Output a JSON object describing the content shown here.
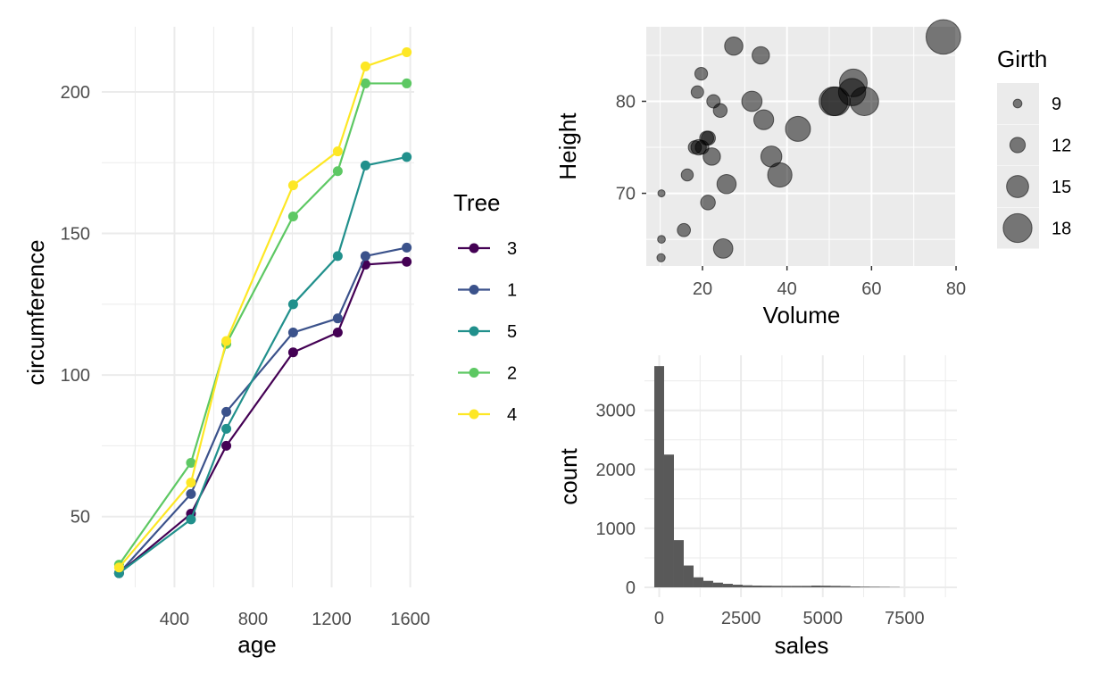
{
  "colors": {
    "tree3": "#440154",
    "tree1": "#3b528b",
    "tree5": "#21908c",
    "tree2": "#5dc863",
    "tree4": "#fde725",
    "grid_major": "#ebebeb",
    "panel_grey": "#ebebeb",
    "axis_text": "#4d4d4d",
    "bubble_fill": "#000000",
    "hist_fill": "#595959"
  },
  "chart_data": [
    {
      "type": "line",
      "title": "",
      "xlabel": "age",
      "ylabel": "circumference",
      "xlim": [
        30,
        1620
      ],
      "ylim": [
        25,
        223
      ],
      "xticks": [
        400,
        800,
        1200,
        1600
      ],
      "xtick_labels": [
        "400",
        "800",
        "1200",
        "1600"
      ],
      "yticks": [
        50,
        100,
        150,
        200
      ],
      "ytick_labels": [
        "50",
        "100",
        "150",
        "200"
      ],
      "legend_title": "Tree",
      "legend_position": "right",
      "x": [
        118,
        484,
        664,
        1004,
        1231,
        1372,
        1582
      ],
      "series": [
        {
          "name": "3",
          "color_key": "tree3",
          "values": [
            30,
            51,
            75,
            108,
            115,
            139,
            140
          ]
        },
        {
          "name": "1",
          "color_key": "tree1",
          "values": [
            30,
            58,
            87,
            115,
            120,
            142,
            145
          ]
        },
        {
          "name": "5",
          "color_key": "tree5",
          "values": [
            30,
            49,
            81,
            125,
            142,
            174,
            177
          ]
        },
        {
          "name": "2",
          "color_key": "tree2",
          "values": [
            33,
            69,
            111,
            156,
            172,
            203,
            203
          ]
        },
        {
          "name": "4",
          "color_key": "tree4",
          "values": [
            32,
            62,
            112,
            167,
            179,
            209,
            214
          ]
        }
      ]
    },
    {
      "type": "scatter",
      "title": "",
      "xlabel": "Volume",
      "ylabel": "Height",
      "xlim": [
        6.7,
        80.2
      ],
      "ylim": [
        62.1,
        88.1
      ],
      "xticks": [
        20,
        40,
        60,
        80
      ],
      "xtick_labels": [
        "20",
        "40",
        "60",
        "80"
      ],
      "yticks": [
        70,
        80
      ],
      "ytick_labels": [
        "70",
        "80"
      ],
      "size_legend_title": "Girth",
      "size_legend_values": [
        9,
        12,
        15,
        18
      ],
      "size_legend_labels": [
        "9",
        "12",
        "15",
        "18"
      ],
      "points": [
        {
          "girth": 8.3,
          "height": 70,
          "volume": 10.3
        },
        {
          "girth": 8.6,
          "height": 65,
          "volume": 10.3
        },
        {
          "girth": 8.8,
          "height": 63,
          "volume": 10.2
        },
        {
          "girth": 10.5,
          "height": 72,
          "volume": 16.4
        },
        {
          "girth": 10.7,
          "height": 81,
          "volume": 18.8
        },
        {
          "girth": 10.8,
          "height": 83,
          "volume": 19.7
        },
        {
          "girth": 11.0,
          "height": 66,
          "volume": 15.6
        },
        {
          "girth": 11.0,
          "height": 75,
          "volume": 18.2
        },
        {
          "girth": 11.1,
          "height": 80,
          "volume": 22.6
        },
        {
          "girth": 11.2,
          "height": 75,
          "volume": 19.9
        },
        {
          "girth": 11.3,
          "height": 79,
          "volume": 24.2
        },
        {
          "girth": 11.4,
          "height": 76,
          "volume": 21.0
        },
        {
          "girth": 11.4,
          "height": 76,
          "volume": 21.4
        },
        {
          "girth": 11.7,
          "height": 69,
          "volume": 21.3
        },
        {
          "girth": 12.0,
          "height": 75,
          "volume": 19.1
        },
        {
          "girth": 12.9,
          "height": 74,
          "volume": 22.2
        },
        {
          "girth": 12.9,
          "height": 85,
          "volume": 33.8
        },
        {
          "girth": 13.3,
          "height": 86,
          "volume": 27.4
        },
        {
          "girth": 13.7,
          "height": 71,
          "volume": 25.7
        },
        {
          "girth": 13.8,
          "height": 64,
          "volume": 24.9
        },
        {
          "girth": 14.0,
          "height": 78,
          "volume": 34.5
        },
        {
          "girth": 14.2,
          "height": 80,
          "volume": 31.7
        },
        {
          "girth": 14.5,
          "height": 74,
          "volume": 36.3
        },
        {
          "girth": 16.0,
          "height": 72,
          "volume": 38.3
        },
        {
          "girth": 16.3,
          "height": 77,
          "volume": 42.6
        },
        {
          "girth": 17.3,
          "height": 81,
          "volume": 55.4
        },
        {
          "girth": 17.5,
          "height": 82,
          "volume": 55.7
        },
        {
          "girth": 17.9,
          "height": 80,
          "volume": 58.3
        },
        {
          "girth": 18.0,
          "height": 80,
          "volume": 51.5
        },
        {
          "girth": 18.0,
          "height": 80,
          "volume": 51.0
        },
        {
          "girth": 20.6,
          "height": 87,
          "volume": 77.0
        }
      ]
    },
    {
      "type": "bar",
      "subtype": "histogram",
      "title": "",
      "xlabel": "sales",
      "ylabel": "count",
      "xlim": [
        -450,
        9100
      ],
      "ylim": [
        0,
        3900
      ],
      "xticks": [
        0,
        2500,
        5000,
        7500
      ],
      "xtick_labels": [
        "0",
        "2500",
        "5000",
        "7500"
      ],
      "yticks": [
        0,
        1000,
        2000,
        3000
      ],
      "ytick_labels": [
        "0",
        "1000",
        "2000",
        "3000"
      ],
      "bin_width": 300,
      "bin_starts": [
        -150,
        150,
        450,
        750,
        1050,
        1350,
        1650,
        1950,
        2250,
        2550,
        2850,
        3150,
        3450,
        3750,
        4050,
        4350,
        4650,
        4950,
        5250,
        5550,
        5850,
        6150,
        6450,
        6750,
        7050
      ],
      "values": [
        3750,
        2250,
        800,
        370,
        170,
        110,
        80,
        60,
        45,
        35,
        30,
        28,
        26,
        25,
        25,
        25,
        30,
        28,
        25,
        22,
        15,
        12,
        10,
        8,
        5
      ]
    }
  ]
}
